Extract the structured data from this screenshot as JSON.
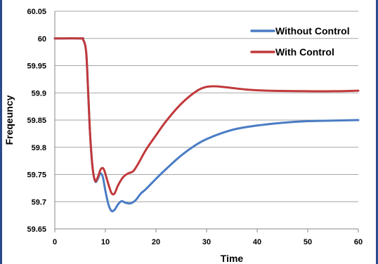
{
  "chart_data": {
    "type": "line",
    "xlabel": "Time",
    "ylabel": "Freqeuncy",
    "xlim": [
      0,
      60
    ],
    "ylim": [
      59.65,
      60.05
    ],
    "xticks": [
      0,
      10,
      20,
      30,
      40,
      50,
      60
    ],
    "yticks": [
      59.65,
      59.7,
      59.75,
      59.8,
      59.85,
      59.9,
      59.95,
      60,
      60.05
    ],
    "ytick_labels": [
      "59.65",
      "59.7",
      "59.75",
      "59.8",
      "59.85",
      "59.9",
      "59.95",
      "60",
      "60.05"
    ],
    "xtick_labels": [
      "0",
      "10",
      "20",
      "30",
      "40",
      "50",
      "60"
    ],
    "grid": "horizontal",
    "legend_position": "top-right",
    "series": [
      {
        "name": "Without Control",
        "color": "#4a7cc4",
        "points": [
          [
            0,
            60.0
          ],
          [
            5,
            60.0
          ],
          [
            5.6,
            59.998
          ],
          [
            6.2,
            59.975
          ],
          [
            6.6,
            59.9
          ],
          [
            7.0,
            59.82
          ],
          [
            7.5,
            59.76
          ],
          [
            8.0,
            59.737
          ],
          [
            8.5,
            59.742
          ],
          [
            9.0,
            59.752
          ],
          [
            9.5,
            59.745
          ],
          [
            10.0,
            59.72
          ],
          [
            10.6,
            59.695
          ],
          [
            11.2,
            59.683
          ],
          [
            11.8,
            59.685
          ],
          [
            12.5,
            59.695
          ],
          [
            13.2,
            59.701
          ],
          [
            14.0,
            59.698
          ],
          [
            15.0,
            59.697
          ],
          [
            16.0,
            59.703
          ],
          [
            17.0,
            59.715
          ],
          [
            18.0,
            59.723
          ],
          [
            20.0,
            59.742
          ],
          [
            22.0,
            59.76
          ],
          [
            25.0,
            59.785
          ],
          [
            28.0,
            59.805
          ],
          [
            30.0,
            59.815
          ],
          [
            33.0,
            59.826
          ],
          [
            36.0,
            59.834
          ],
          [
            40.0,
            59.84
          ],
          [
            45.0,
            59.845
          ],
          [
            50.0,
            59.848
          ],
          [
            55.0,
            59.849
          ],
          [
            60.0,
            59.85
          ]
        ]
      },
      {
        "name": "With Control",
        "color": "#c0393b",
        "points": [
          [
            0,
            60.0
          ],
          [
            5,
            60.0
          ],
          [
            5.6,
            59.998
          ],
          [
            6.2,
            59.975
          ],
          [
            6.6,
            59.9
          ],
          [
            7.0,
            59.82
          ],
          [
            7.5,
            59.76
          ],
          [
            8.0,
            59.738
          ],
          [
            8.5,
            59.745
          ],
          [
            9.0,
            59.758
          ],
          [
            9.4,
            59.762
          ],
          [
            9.8,
            59.757
          ],
          [
            10.5,
            59.735
          ],
          [
            11.2,
            59.716
          ],
          [
            11.8,
            59.715
          ],
          [
            12.5,
            59.73
          ],
          [
            13.5,
            59.745
          ],
          [
            14.5,
            59.752
          ],
          [
            15.5,
            59.756
          ],
          [
            16.5,
            59.77
          ],
          [
            18.0,
            59.795
          ],
          [
            20.0,
            59.822
          ],
          [
            22.0,
            59.848
          ],
          [
            25.0,
            59.88
          ],
          [
            28.0,
            59.903
          ],
          [
            30.0,
            59.911
          ],
          [
            32.0,
            59.912
          ],
          [
            35.0,
            59.909
          ],
          [
            38.0,
            59.906
          ],
          [
            42.0,
            59.904
          ],
          [
            50.0,
            59.903
          ],
          [
            55.0,
            59.903
          ],
          [
            60.0,
            59.904
          ]
        ]
      }
    ]
  }
}
